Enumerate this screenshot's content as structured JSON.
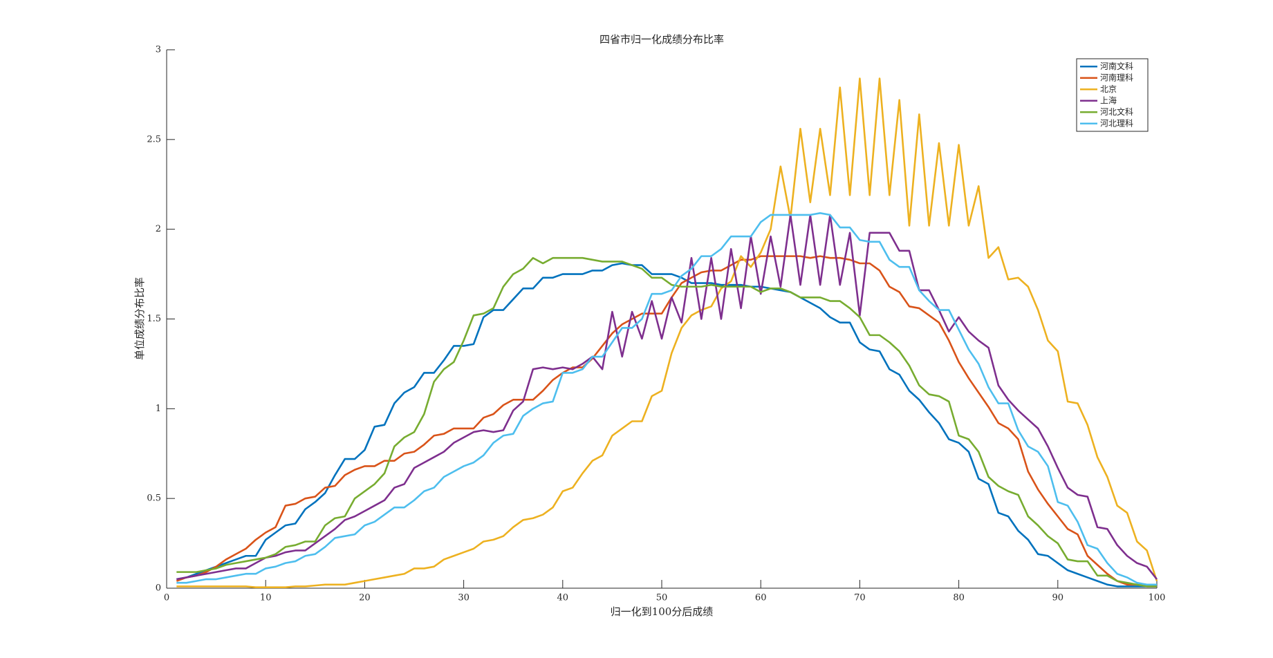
{
  "chart_data": {
    "type": "line",
    "title": "四省市归一化成绩分布比率",
    "xlabel": "归一化到100分后成绩",
    "ylabel": "单位成绩分布比率",
    "x": [
      1,
      2,
      3,
      4,
      5,
      6,
      7,
      8,
      9,
      10,
      11,
      12,
      13,
      14,
      15,
      16,
      17,
      18,
      19,
      20,
      21,
      22,
      23,
      24,
      25,
      26,
      27,
      28,
      29,
      30,
      31,
      32,
      33,
      34,
      35,
      36,
      37,
      38,
      39,
      40,
      41,
      42,
      43,
      44,
      45,
      46,
      47,
      48,
      49,
      50,
      51,
      52,
      53,
      54,
      55,
      56,
      57,
      58,
      59,
      60,
      61,
      62,
      63,
      64,
      65,
      66,
      67,
      68,
      69,
      70,
      71,
      72,
      73,
      74,
      75,
      76,
      77,
      78,
      79,
      80,
      81,
      82,
      83,
      84,
      85,
      86,
      87,
      88,
      89,
      90,
      91,
      92,
      93,
      94,
      95,
      96,
      97,
      98,
      99,
      100
    ],
    "xlim": [
      0,
      100
    ],
    "xticks": [
      0,
      10,
      20,
      30,
      40,
      50,
      60,
      70,
      80,
      90,
      100
    ],
    "ylim": [
      0,
      3
    ],
    "yticks": [
      0,
      0.5,
      1,
      1.5,
      2,
      2.5,
      3
    ],
    "legend": "upper right",
    "series": [
      {
        "name": "河南文科",
        "color": "#0072bd",
        "values": [
          0.05,
          0.06,
          0.08,
          0.1,
          0.12,
          0.14,
          0.16,
          0.18,
          0.18,
          0.27,
          0.31,
          0.35,
          0.36,
          0.44,
          0.48,
          0.53,
          0.63,
          0.72,
          0.72,
          0.77,
          0.9,
          0.91,
          1.03,
          1.09,
          1.12,
          1.2,
          1.2,
          1.27,
          1.35,
          1.35,
          1.36,
          1.51,
          1.55,
          1.55,
          1.61,
          1.67,
          1.67,
          1.73,
          1.73,
          1.75,
          1.75,
          1.75,
          1.77,
          1.77,
          1.8,
          1.81,
          1.8,
          1.8,
          1.75,
          1.75,
          1.75,
          1.73,
          1.7,
          1.7,
          1.7,
          1.69,
          1.69,
          1.69,
          1.68,
          1.68,
          1.67,
          1.66,
          1.65,
          1.62,
          1.59,
          1.56,
          1.51,
          1.48,
          1.48,
          1.37,
          1.33,
          1.32,
          1.22,
          1.19,
          1.1,
          1.05,
          0.98,
          0.92,
          0.83,
          0.81,
          0.76,
          0.61,
          0.58,
          0.42,
          0.4,
          0.32,
          0.27,
          0.19,
          0.18,
          0.14,
          0.1,
          0.08,
          0.06,
          0.04,
          0.02,
          0.01,
          0.01,
          0.01,
          0.01,
          0.01
        ]
      },
      {
        "name": "河南理科",
        "color": "#d95319",
        "values": [
          0.04,
          0.06,
          0.07,
          0.09,
          0.12,
          0.16,
          0.19,
          0.22,
          0.27,
          0.31,
          0.34,
          0.46,
          0.47,
          0.5,
          0.51,
          0.56,
          0.57,
          0.63,
          0.66,
          0.68,
          0.68,
          0.71,
          0.71,
          0.75,
          0.76,
          0.8,
          0.85,
          0.86,
          0.89,
          0.89,
          0.89,
          0.95,
          0.97,
          1.02,
          1.05,
          1.05,
          1.05,
          1.1,
          1.16,
          1.2,
          1.23,
          1.23,
          1.28,
          1.35,
          1.42,
          1.47,
          1.5,
          1.53,
          1.53,
          1.53,
          1.62,
          1.7,
          1.73,
          1.76,
          1.77,
          1.77,
          1.8,
          1.83,
          1.83,
          1.85,
          1.85,
          1.85,
          1.85,
          1.85,
          1.84,
          1.85,
          1.84,
          1.84,
          1.83,
          1.81,
          1.81,
          1.77,
          1.68,
          1.65,
          1.57,
          1.56,
          1.52,
          1.48,
          1.38,
          1.26,
          1.17,
          1.09,
          1.01,
          0.92,
          0.89,
          0.83,
          0.65,
          0.55,
          0.47,
          0.4,
          0.33,
          0.3,
          0.18,
          0.13,
          0.08,
          0.04,
          0.02,
          0.02,
          0.01,
          0.01
        ]
      },
      {
        "name": "北京",
        "color": "#edb120",
        "values": [
          0.01,
          0.01,
          0.01,
          0.01,
          0.01,
          0.01,
          0.01,
          0.01,
          0.005,
          0.005,
          0.005,
          0.005,
          0.01,
          0.01,
          0.015,
          0.02,
          0.02,
          0.02,
          0.03,
          0.04,
          0.05,
          0.06,
          0.07,
          0.08,
          0.11,
          0.11,
          0.12,
          0.16,
          0.18,
          0.2,
          0.22,
          0.26,
          0.27,
          0.29,
          0.34,
          0.38,
          0.39,
          0.41,
          0.45,
          0.54,
          0.56,
          0.64,
          0.71,
          0.74,
          0.85,
          0.89,
          0.93,
          0.93,
          1.07,
          1.1,
          1.31,
          1.45,
          1.52,
          1.55,
          1.57,
          1.67,
          1.71,
          1.85,
          1.79,
          1.87,
          2.0,
          2.35,
          2.06,
          2.56,
          2.15,
          2.56,
          2.19,
          2.79,
          2.19,
          2.84,
          2.19,
          2.84,
          2.19,
          2.72,
          2.02,
          2.64,
          2.02,
          2.48,
          2.02,
          2.47,
          2.02,
          2.24,
          1.84,
          1.9,
          1.72,
          1.73,
          1.68,
          1.55,
          1.38,
          1.32,
          1.04,
          1.03,
          0.91,
          0.73,
          0.62,
          0.46,
          0.42,
          0.26,
          0.21,
          0.04
        ]
      },
      {
        "name": "上海",
        "color": "#7e2f8e",
        "values": [
          0.05,
          0.06,
          0.07,
          0.08,
          0.09,
          0.1,
          0.11,
          0.11,
          0.14,
          0.17,
          0.18,
          0.2,
          0.21,
          0.21,
          0.25,
          0.29,
          0.33,
          0.38,
          0.4,
          0.43,
          0.46,
          0.49,
          0.56,
          0.58,
          0.67,
          0.7,
          0.73,
          0.76,
          0.81,
          0.84,
          0.87,
          0.88,
          0.87,
          0.88,
          0.99,
          1.04,
          1.22,
          1.23,
          1.22,
          1.23,
          1.22,
          1.25,
          1.29,
          1.22,
          1.54,
          1.29,
          1.54,
          1.39,
          1.6,
          1.39,
          1.62,
          1.48,
          1.84,
          1.5,
          1.84,
          1.5,
          1.89,
          1.56,
          1.96,
          1.64,
          1.96,
          1.68,
          2.08,
          1.69,
          2.08,
          1.69,
          2.08,
          1.69,
          1.98,
          1.52,
          1.98,
          1.98,
          1.98,
          1.88,
          1.88,
          1.66,
          1.66,
          1.55,
          1.43,
          1.51,
          1.43,
          1.38,
          1.34,
          1.13,
          1.05,
          0.99,
          0.94,
          0.89,
          0.79,
          0.67,
          0.56,
          0.52,
          0.51,
          0.34,
          0.33,
          0.24,
          0.18,
          0.14,
          0.12,
          0.05
        ]
      },
      {
        "name": "河北文科",
        "color": "#77ac30",
        "values": [
          0.09,
          0.09,
          0.09,
          0.1,
          0.11,
          0.13,
          0.14,
          0.15,
          0.16,
          0.17,
          0.19,
          0.23,
          0.24,
          0.26,
          0.26,
          0.35,
          0.39,
          0.4,
          0.5,
          0.54,
          0.58,
          0.64,
          0.79,
          0.84,
          0.87,
          0.97,
          1.15,
          1.22,
          1.26,
          1.38,
          1.52,
          1.53,
          1.56,
          1.68,
          1.75,
          1.78,
          1.84,
          1.81,
          1.84,
          1.84,
          1.84,
          1.84,
          1.83,
          1.82,
          1.82,
          1.82,
          1.8,
          1.78,
          1.73,
          1.73,
          1.69,
          1.68,
          1.68,
          1.68,
          1.69,
          1.68,
          1.68,
          1.68,
          1.68,
          1.65,
          1.67,
          1.67,
          1.65,
          1.62,
          1.62,
          1.62,
          1.6,
          1.6,
          1.56,
          1.51,
          1.41,
          1.41,
          1.37,
          1.32,
          1.24,
          1.13,
          1.08,
          1.07,
          1.04,
          0.85,
          0.83,
          0.76,
          0.62,
          0.57,
          0.54,
          0.52,
          0.4,
          0.35,
          0.29,
          0.25,
          0.16,
          0.15,
          0.15,
          0.07,
          0.07,
          0.04,
          0.03,
          0.02,
          0.01,
          0.01
        ]
      },
      {
        "name": "河北理科",
        "color": "#4dbeee",
        "values": [
          0.03,
          0.03,
          0.04,
          0.05,
          0.05,
          0.06,
          0.07,
          0.08,
          0.08,
          0.11,
          0.12,
          0.14,
          0.15,
          0.18,
          0.19,
          0.23,
          0.28,
          0.29,
          0.3,
          0.35,
          0.37,
          0.41,
          0.45,
          0.45,
          0.49,
          0.54,
          0.56,
          0.62,
          0.65,
          0.68,
          0.7,
          0.74,
          0.81,
          0.85,
          0.86,
          0.96,
          1.0,
          1.03,
          1.04,
          1.2,
          1.2,
          1.22,
          1.29,
          1.29,
          1.37,
          1.45,
          1.45,
          1.5,
          1.64,
          1.64,
          1.66,
          1.74,
          1.78,
          1.85,
          1.85,
          1.89,
          1.96,
          1.96,
          1.96,
          2.04,
          2.08,
          2.08,
          2.08,
          2.08,
          2.08,
          2.09,
          2.08,
          2.01,
          2.01,
          1.94,
          1.93,
          1.93,
          1.83,
          1.79,
          1.79,
          1.66,
          1.6,
          1.55,
          1.55,
          1.44,
          1.33,
          1.25,
          1.12,
          1.03,
          1.03,
          0.88,
          0.79,
          0.76,
          0.68,
          0.48,
          0.46,
          0.37,
          0.24,
          0.22,
          0.14,
          0.08,
          0.06,
          0.03,
          0.02,
          0.02
        ]
      }
    ]
  }
}
